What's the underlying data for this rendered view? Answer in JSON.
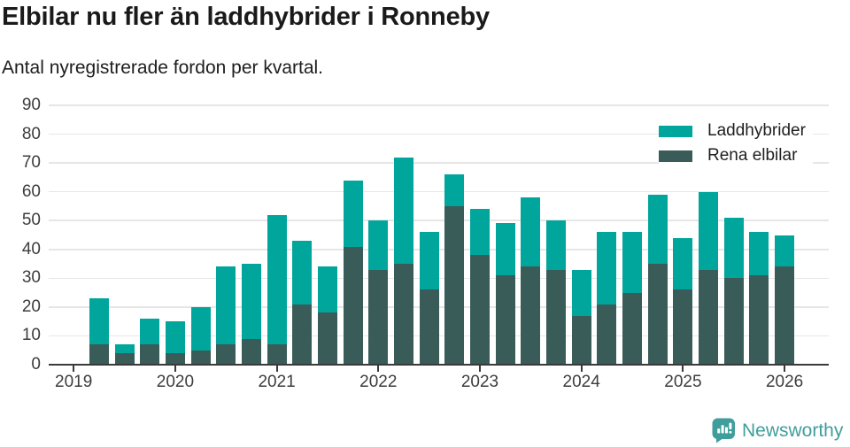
{
  "header": {
    "title": "Elbilar nu fler än laddhybrider i Ronneby",
    "subtitle": "Antal nyregistrerade fordon per kvartal."
  },
  "legend": {
    "items": [
      {
        "label": "Laddhybrider",
        "color": "#00a69c"
      },
      {
        "label": "Rena elbilar",
        "color": "#3a5c58"
      }
    ]
  },
  "footer": {
    "brand": "Newsworthy",
    "logo_icon": "newsworthy-speech-bubble-bar-chart-icon"
  },
  "colors": {
    "laddhybrider": "#00a69c",
    "rena_elbilar": "#3a5c58",
    "brand": "#3f9e9b",
    "gridline": "#e6e6e6",
    "axis": "#3a3a3a",
    "tick_text": "#3d3d3d",
    "title_text": "#1a1a1a"
  },
  "chart_data": {
    "type": "bar",
    "stacked": true,
    "title": "Elbilar nu fler än laddhybrider i Ronneby",
    "subtitle": "Antal nyregistrerade fordon per kvartal.",
    "xlabel": "",
    "ylabel": "",
    "ylim": [
      0,
      90
    ],
    "yticks": [
      0,
      10,
      20,
      30,
      40,
      50,
      60,
      70,
      80,
      90
    ],
    "xticks": [
      "2019",
      "2020",
      "2021",
      "2022",
      "2023",
      "2024",
      "2025",
      "2026"
    ],
    "grid": true,
    "legend_position": "top-right",
    "stack_order_bottom_to_top": [
      "Rena elbilar",
      "Laddhybrider"
    ],
    "categories": [
      "2019-Q2",
      "2019-Q3",
      "2019-Q4",
      "2020-Q1",
      "2020-Q2",
      "2020-Q3",
      "2020-Q4",
      "2021-Q1",
      "2021-Q2",
      "2021-Q3",
      "2021-Q4",
      "2022-Q1",
      "2022-Q2",
      "2022-Q3",
      "2022-Q4",
      "2023-Q1",
      "2023-Q2",
      "2023-Q3",
      "2023-Q4",
      "2024-Q1",
      "2024-Q2",
      "2024-Q3",
      "2024-Q4",
      "2025-Q1",
      "2025-Q2",
      "2025-Q3",
      "2025-Q4",
      "2026-Q1"
    ],
    "series": [
      {
        "name": "Laddhybrider",
        "color": "#00a69c",
        "values": [
          16,
          3,
          9,
          11,
          15,
          27,
          26,
          45,
          22,
          16,
          23,
          17,
          37,
          20,
          11,
          16,
          18,
          24,
          17,
          16,
          25,
          21,
          24,
          18,
          27,
          21,
          15,
          11
        ]
      },
      {
        "name": "Rena elbilar",
        "color": "#3a5c58",
        "values": [
          7,
          4,
          7,
          4,
          5,
          7,
          9,
          7,
          21,
          18,
          41,
          33,
          35,
          26,
          55,
          38,
          31,
          34,
          33,
          17,
          21,
          25,
          35,
          26,
          33,
          30,
          31,
          34
        ]
      }
    ],
    "totals": [
      23,
      7,
      16,
      15,
      20,
      34,
      35,
      52,
      43,
      34,
      64,
      50,
      72,
      46,
      66,
      54,
      49,
      58,
      50,
      33,
      46,
      46,
      59,
      44,
      60,
      51,
      46,
      45
    ]
  }
}
